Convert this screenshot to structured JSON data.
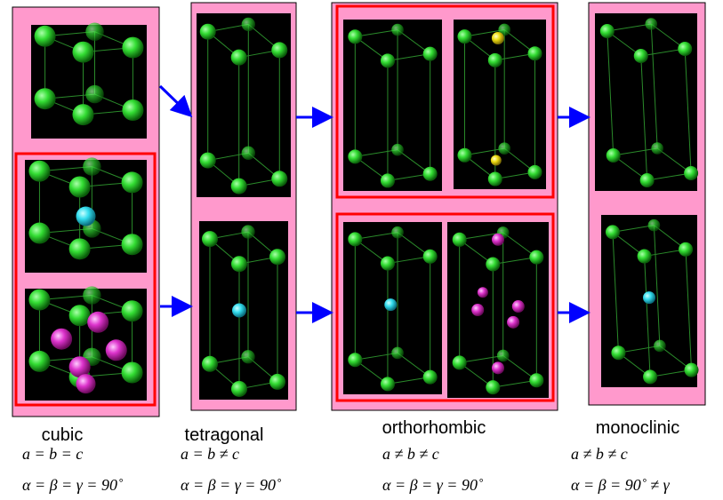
{
  "columns": [
    {
      "name": "cubic",
      "lattice": "a = b = c",
      "angles": "α = β = γ = 90˚"
    },
    {
      "name": "tetragonal",
      "lattice": "a = b ≠ c",
      "angles": "α = β = γ = 90˚"
    },
    {
      "name": "orthorhombic",
      "lattice": "a ≠ b ≠ c",
      "angles": "α = β = γ = 90˚"
    },
    {
      "name": "monoclinic",
      "lattice": "a ≠ b ≠ c",
      "angles": "α = β = 90˚ ≠ γ"
    }
  ]
}
